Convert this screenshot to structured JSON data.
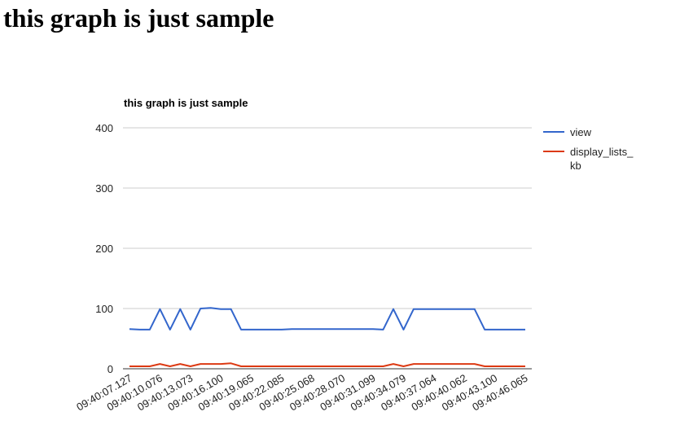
{
  "page": {
    "heading": "this graph is just sample"
  },
  "chart_data": {
    "type": "line",
    "title": "this graph is just sample",
    "xlabel": "",
    "ylabel": "",
    "ylim": [
      0,
      400
    ],
    "yticks": [
      0,
      100,
      200,
      300,
      400
    ],
    "grid": true,
    "legend_position": "right",
    "categories": [
      "09:40:07.127",
      "",
      "",
      "09:40:10.076",
      "",
      "",
      "09:40:13.073",
      "",
      "",
      "09:40:16.100",
      "",
      "",
      "09:40:19.065",
      "",
      "",
      "09:40:22.085",
      "",
      "",
      "09:40:25.068",
      "",
      "",
      "09:40:28.070",
      "",
      "",
      "09:40:31.099",
      "",
      "",
      "09:40:34.079",
      "",
      "",
      "09:40:37.064",
      "",
      "",
      "09:40:40.062",
      "",
      "",
      "09:40:43.100",
      "",
      "",
      "09:40:46.065"
    ],
    "series": [
      {
        "name": "view",
        "color": "#3366cc",
        "values": [
          66,
          65,
          65,
          99,
          65,
          99,
          65,
          100,
          101,
          99,
          99,
          65,
          65,
          65,
          65,
          65,
          66,
          66,
          66,
          66,
          66,
          66,
          66,
          66,
          66,
          65,
          99,
          65,
          99,
          99,
          99,
          99,
          99,
          99,
          99,
          65,
          65,
          65,
          65,
          65
        ]
      },
      {
        "name": "display_lists_",
        "name_cont": "kb",
        "color": "#dc3912",
        "values": [
          4,
          4,
          4,
          8,
          4,
          8,
          4,
          8,
          8,
          8,
          9,
          4,
          4,
          4,
          4,
          4,
          4,
          4,
          4,
          4,
          4,
          4,
          4,
          4,
          4,
          4,
          8,
          4,
          8,
          8,
          8,
          8,
          8,
          8,
          8,
          4,
          4,
          4,
          4,
          4
        ]
      }
    ]
  }
}
